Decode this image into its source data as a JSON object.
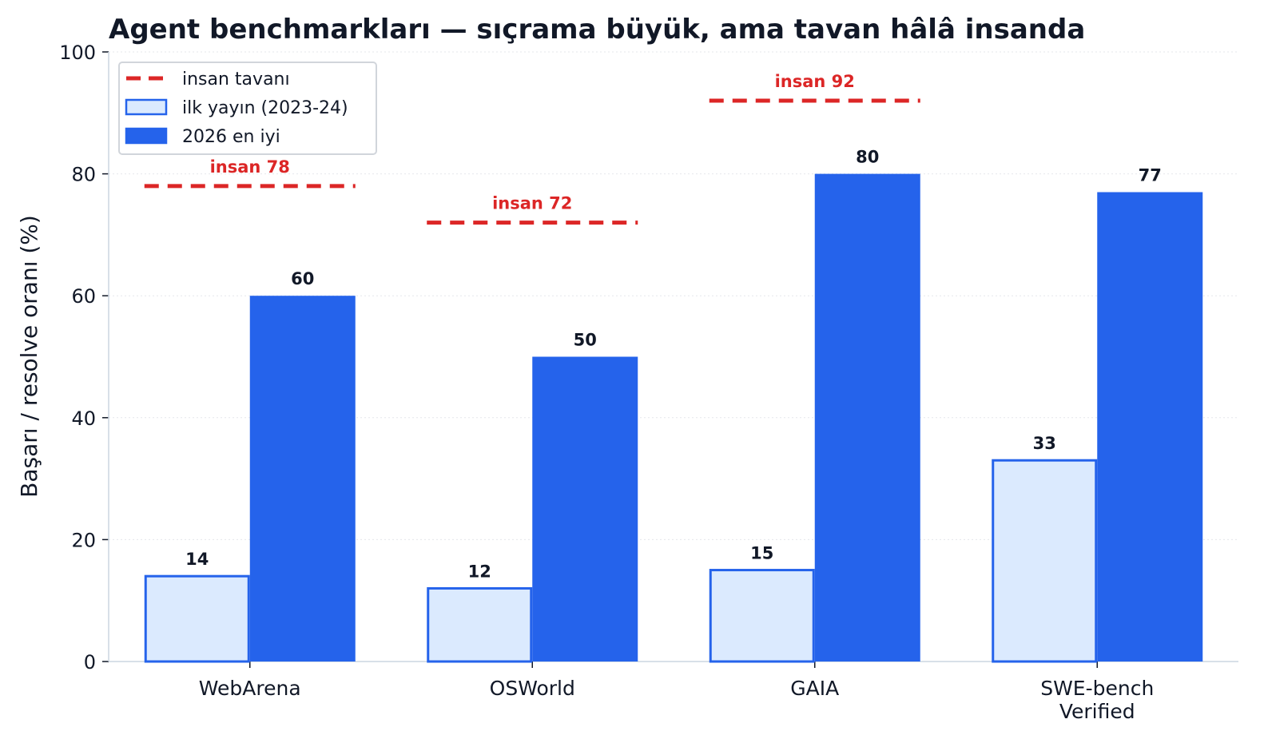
{
  "chart_data": {
    "type": "bar",
    "title": "Agent benchmarkları — sıçrama büyük, ama tavan hâlâ insanda",
    "xlabel": "",
    "ylabel": "Başarı / resolve oranı (%)",
    "ylim": [
      0,
      100
    ],
    "yticks": [
      0,
      20,
      40,
      60,
      80,
      100
    ],
    "grid": true,
    "legend_position": "top-left",
    "categories": [
      [
        "WebArena"
      ],
      [
        "OSWorld"
      ],
      [
        "GAIA"
      ],
      [
        "SWE-bench",
        "Verified"
      ]
    ],
    "series": [
      {
        "name": "ilk yayın (2023-24)",
        "values": [
          14,
          12,
          15,
          33
        ],
        "fill": "#dbeafe",
        "stroke": "#2563eb"
      },
      {
        "name": "2026 en iyi",
        "values": [
          60,
          50,
          80,
          77
        ],
        "fill": "#2563eb",
        "stroke": "#2563eb"
      }
    ],
    "human_ceiling": {
      "name": "insan tavanı",
      "values": [
        78,
        72,
        92,
        null
      ],
      "labels": [
        "insan 78",
        "insan 72",
        "insan 92",
        null
      ],
      "color": "#dc2626"
    }
  }
}
